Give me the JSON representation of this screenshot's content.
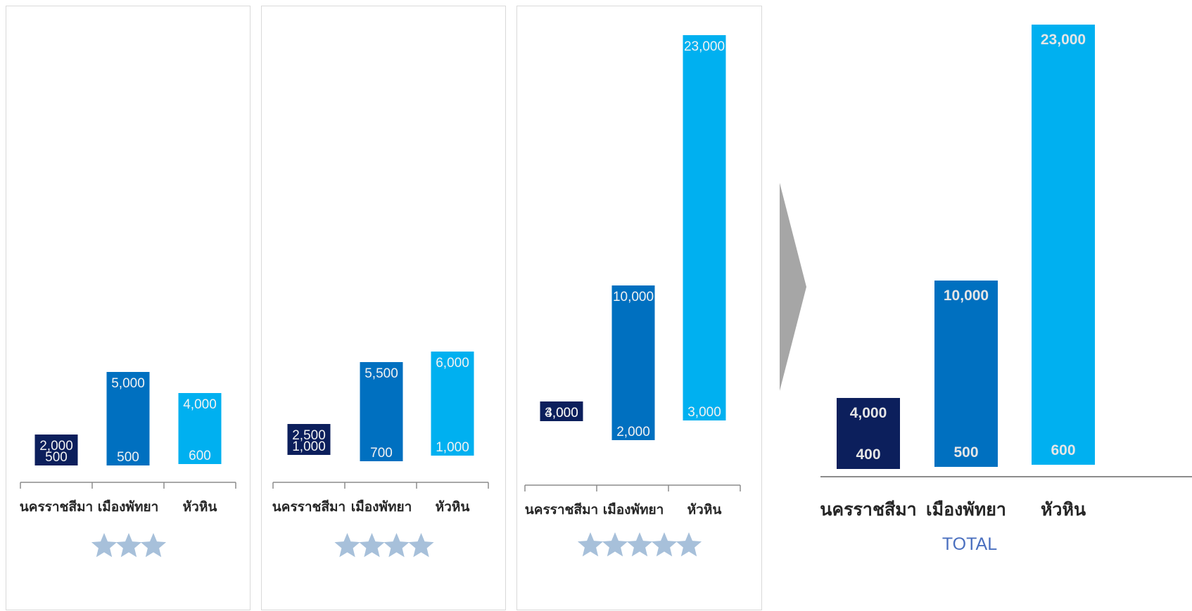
{
  "colors": {
    "series": [
      "#0c1f5c",
      "#0070c0",
      "#00b0f0"
    ],
    "axis": "#8c8c8c",
    "star": "#a7c0da",
    "arrow": "#a6a6a6",
    "total_title": "#4a6fbf"
  },
  "chart_data": [
    {
      "type": "bar",
      "chart_style": "floating-range",
      "categories": [
        "นครราชสีมา",
        "เมืองพัทยา",
        "หัวหิน"
      ],
      "low": [
        500,
        500,
        600
      ],
      "high": [
        2000,
        5000,
        4000
      ],
      "low_labels": [
        "500",
        "500",
        "600"
      ],
      "high_labels": [
        "2,000",
        "5,000",
        "4,000"
      ],
      "rating_stars": 3
    },
    {
      "type": "bar",
      "chart_style": "floating-range",
      "categories": [
        "นครราชสีมา",
        "เมืองพัทยา",
        "หัวหิน"
      ],
      "low": [
        1000,
        700,
        1000
      ],
      "high": [
        2500,
        5500,
        6000
      ],
      "low_labels": [
        "1,000",
        "700",
        "1,000"
      ],
      "high_labels": [
        "2,500",
        "5,500",
        "6,000"
      ],
      "rating_stars": 4
    },
    {
      "type": "bar",
      "chart_style": "floating-range",
      "categories": [
        "นครราชสีมา",
        "เมืองพัทยา",
        "หัวหิน"
      ],
      "low": [
        3000,
        2000,
        3000
      ],
      "high": [
        4000,
        10000,
        23000
      ],
      "low_labels": [
        "3,000",
        "2,000",
        "3,000"
      ],
      "high_labels": [
        "4,000",
        "10,000",
        "23,000"
      ],
      "rating_stars": 5
    },
    {
      "type": "bar",
      "chart_style": "floating-range",
      "title": "TOTAL",
      "categories": [
        "นครราชสีมา",
        "เมืองพัทยา",
        "หัวหิน"
      ],
      "low": [
        400,
        500,
        600
      ],
      "high": [
        4000,
        10000,
        23000
      ],
      "low_labels": [
        "400",
        "500",
        "600"
      ],
      "high_labels": [
        "4,000",
        "10,000",
        "23,000"
      ]
    }
  ]
}
